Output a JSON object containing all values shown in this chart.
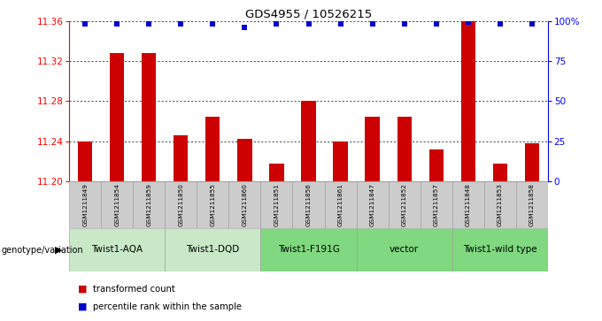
{
  "title": "GDS4955 / 10526215",
  "samples": [
    "GSM1211849",
    "GSM1211854",
    "GSM1211859",
    "GSM1211850",
    "GSM1211855",
    "GSM1211860",
    "GSM1211851",
    "GSM1211856",
    "GSM1211861",
    "GSM1211847",
    "GSM1211852",
    "GSM1211857",
    "GSM1211848",
    "GSM1211853",
    "GSM1211858"
  ],
  "bar_values": [
    11.24,
    11.328,
    11.328,
    11.246,
    11.264,
    11.242,
    11.218,
    11.28,
    11.24,
    11.264,
    11.264,
    11.232,
    11.36,
    11.218,
    11.238
  ],
  "percentile_values": [
    98,
    98,
    98,
    98,
    98,
    96,
    98,
    98,
    98,
    98,
    98,
    98,
    99,
    98,
    98
  ],
  "ymin": 11.2,
  "ymax": 11.36,
  "yticks": [
    11.2,
    11.24,
    11.28,
    11.32,
    11.36
  ],
  "right_yticks": [
    0,
    25,
    50,
    75,
    100
  ],
  "right_ytick_labels": [
    "0",
    "25",
    "50",
    "75",
    "100%"
  ],
  "groups": [
    {
      "label": "Twist1-AQA",
      "start": 0,
      "end": 3,
      "color": "#c8e8c8"
    },
    {
      "label": "Twist1-DQD",
      "start": 3,
      "end": 6,
      "color": "#c8e8c8"
    },
    {
      "label": "Twist1-F191G",
      "start": 6,
      "end": 9,
      "color": "#80d880"
    },
    {
      "label": "vector",
      "start": 9,
      "end": 12,
      "color": "#80d880"
    },
    {
      "label": "Twist1-wild type",
      "start": 12,
      "end": 15,
      "color": "#80d880"
    }
  ],
  "bar_color": "#cc0000",
  "dot_color": "#0000cc",
  "bar_width": 0.45,
  "genotype_label": "genotype/variation",
  "legend_items": [
    {
      "label": "transformed count",
      "color": "#cc0000"
    },
    {
      "label": "percentile rank within the sample",
      "color": "#0000cc"
    }
  ],
  "sample_box_color": "#cccccc",
  "fig_bg": "#ffffff"
}
